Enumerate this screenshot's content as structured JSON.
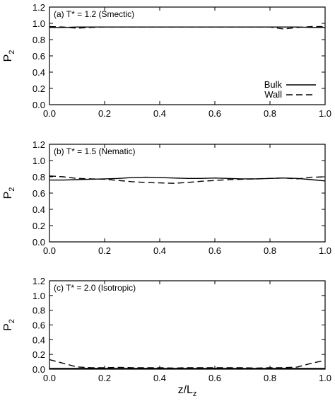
{
  "figure": {
    "xlabel": "z/L",
    "xlabel_sub": "z",
    "ylabel": "P",
    "ylabel_sub": "2"
  },
  "chart_data": [
    {
      "type": "line",
      "title": "(a) T* = 1.2 (Smectic)",
      "xlabel": "",
      "ylabel": "P2",
      "xlim": [
        0.0,
        1.0
      ],
      "ylim": [
        0.0,
        1.2
      ],
      "xticks": [
        "0.0",
        "0.2",
        "0.4",
        "0.6",
        "0.8",
        "1.0"
      ],
      "yticks": [
        "0.0",
        "0.2",
        "0.4",
        "0.6",
        "0.8",
        "1.0",
        "1.2"
      ],
      "legend": {
        "position": "bottom-right"
      },
      "series": [
        {
          "name": "Bulk",
          "style": "solid",
          "color": "#000000",
          "x": [
            0.0,
            0.05,
            0.1,
            0.15,
            0.2,
            0.25,
            0.3,
            0.35,
            0.4,
            0.45,
            0.5,
            0.55,
            0.6,
            0.65,
            0.7,
            0.75,
            0.8,
            0.85,
            0.9,
            0.95,
            1.0
          ],
          "y": [
            0.95,
            0.95,
            0.955,
            0.955,
            0.955,
            0.955,
            0.955,
            0.955,
            0.955,
            0.955,
            0.955,
            0.955,
            0.955,
            0.955,
            0.955,
            0.955,
            0.955,
            0.955,
            0.955,
            0.95,
            0.95
          ]
        },
        {
          "name": "Wall",
          "style": "dashed",
          "color": "#000000",
          "x": [
            0.0,
            0.05,
            0.1,
            0.15,
            0.2,
            0.25,
            0.3,
            0.35,
            0.4,
            0.45,
            0.5,
            0.55,
            0.6,
            0.65,
            0.7,
            0.75,
            0.8,
            0.85,
            0.9,
            0.95,
            1.0
          ],
          "y": [
            0.96,
            0.955,
            0.94,
            0.95,
            0.955,
            0.955,
            0.955,
            0.955,
            0.955,
            0.955,
            0.955,
            0.955,
            0.955,
            0.955,
            0.955,
            0.955,
            0.955,
            0.93,
            0.95,
            0.96,
            0.96
          ]
        }
      ]
    },
    {
      "type": "line",
      "title": "(b) T* = 1.5 (Nematic)",
      "xlabel": "",
      "ylabel": "P2",
      "xlim": [
        0.0,
        1.0
      ],
      "ylim": [
        0.0,
        1.2
      ],
      "xticks": [
        "0.0",
        "0.2",
        "0.4",
        "0.6",
        "0.8",
        "1.0"
      ],
      "yticks": [
        "0.0",
        "0.2",
        "0.4",
        "0.6",
        "0.8",
        "1.0",
        "1.2"
      ],
      "series": [
        {
          "name": "Bulk",
          "style": "solid",
          "color": "#000000",
          "x": [
            0.0,
            0.05,
            0.1,
            0.15,
            0.2,
            0.25,
            0.3,
            0.35,
            0.4,
            0.45,
            0.5,
            0.55,
            0.6,
            0.65,
            0.7,
            0.75,
            0.8,
            0.85,
            0.9,
            0.95,
            1.0
          ],
          "y": [
            0.76,
            0.76,
            0.765,
            0.77,
            0.775,
            0.78,
            0.79,
            0.795,
            0.79,
            0.785,
            0.78,
            0.78,
            0.785,
            0.78,
            0.775,
            0.775,
            0.78,
            0.785,
            0.78,
            0.765,
            0.75
          ]
        },
        {
          "name": "Wall",
          "style": "dashed",
          "color": "#000000",
          "x": [
            0.0,
            0.05,
            0.1,
            0.15,
            0.2,
            0.25,
            0.3,
            0.35,
            0.4,
            0.45,
            0.5,
            0.55,
            0.6,
            0.65,
            0.7,
            0.75,
            0.8,
            0.85,
            0.9,
            0.95,
            1.0
          ],
          "y": [
            0.81,
            0.8,
            0.78,
            0.775,
            0.77,
            0.755,
            0.74,
            0.73,
            0.725,
            0.72,
            0.73,
            0.745,
            0.755,
            0.765,
            0.77,
            0.775,
            0.78,
            0.785,
            0.775,
            0.795,
            0.8
          ]
        }
      ]
    },
    {
      "type": "line",
      "title": "(c) T* = 2.0 (Isotropic)",
      "xlabel": "z/Lz",
      "ylabel": "P2",
      "xlim": [
        0.0,
        1.0
      ],
      "ylim": [
        0.0,
        1.2
      ],
      "xticks": [
        "0.0",
        "0.2",
        "0.4",
        "0.6",
        "0.8",
        "1.0"
      ],
      "yticks": [
        "0.0",
        "0.2",
        "0.4",
        "0.6",
        "0.8",
        "1.0",
        "1.2"
      ],
      "series": [
        {
          "name": "Bulk",
          "style": "solid",
          "color": "#000000",
          "x": [
            0.0,
            0.05,
            0.1,
            0.15,
            0.2,
            0.25,
            0.3,
            0.35,
            0.4,
            0.45,
            0.5,
            0.55,
            0.6,
            0.65,
            0.7,
            0.75,
            0.8,
            0.85,
            0.9,
            0.95,
            1.0
          ],
          "y": [
            0.01,
            0.01,
            0.01,
            0.012,
            0.01,
            0.01,
            0.01,
            0.012,
            0.01,
            0.01,
            0.01,
            0.01,
            0.012,
            0.01,
            0.01,
            0.01,
            0.01,
            0.012,
            0.01,
            0.01,
            0.01
          ]
        },
        {
          "name": "Wall",
          "style": "dashed",
          "color": "#000000",
          "x": [
            0.0,
            0.05,
            0.1,
            0.15,
            0.2,
            0.25,
            0.3,
            0.35,
            0.4,
            0.45,
            0.5,
            0.55,
            0.6,
            0.65,
            0.7,
            0.75,
            0.8,
            0.85,
            0.9,
            0.95,
            1.0
          ],
          "y": [
            0.13,
            0.08,
            0.03,
            0.02,
            0.02,
            0.025,
            0.02,
            0.02,
            0.02,
            0.015,
            0.02,
            0.02,
            0.02,
            0.02,
            0.02,
            0.015,
            0.02,
            0.02,
            0.03,
            0.08,
            0.12
          ]
        }
      ]
    }
  ]
}
